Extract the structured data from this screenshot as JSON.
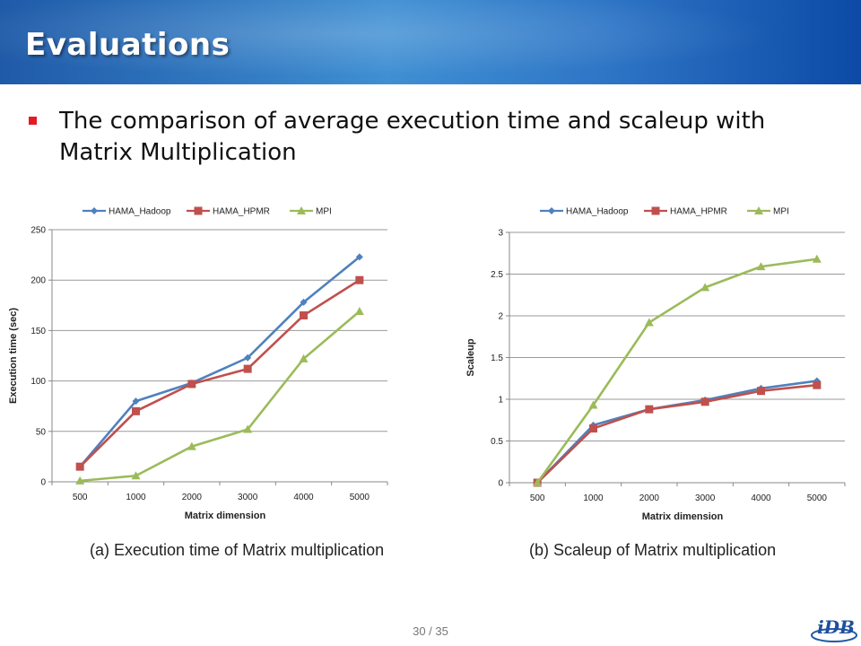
{
  "header": {
    "title": "Evaluations"
  },
  "bullet": {
    "text": "The comparison of average execution time and scaleup with Matrix Multiplication"
  },
  "colors": {
    "header_start": "#1f5aa8",
    "header_end": "#0c4aa6",
    "bullet": "#e31b23",
    "hama_hadoop": "#4f81bd",
    "hama_hpmr": "#c0504d",
    "mpi": "#9bbb59"
  },
  "chart_data": [
    {
      "type": "line",
      "title": "",
      "xlabel": "Matrix dimension",
      "ylabel": "Execution time (sec)",
      "categories": [
        "500",
        "1000",
        "2000",
        "3000",
        "4000",
        "5000"
      ],
      "ylim": [
        0,
        250
      ],
      "yticks": [
        "0",
        "50",
        "100",
        "150",
        "200",
        "250"
      ],
      "grid": true,
      "legend": "top",
      "series": [
        {
          "name": "HAMA_Hadoop",
          "color": "#4f81bd",
          "marker": "diamond",
          "values": [
            15,
            80,
            98,
            123,
            178,
            223
          ]
        },
        {
          "name": "HAMA_HPMR",
          "color": "#c0504d",
          "marker": "square",
          "values": [
            15,
            70,
            97,
            112,
            165,
            200
          ]
        },
        {
          "name": "MPI",
          "color": "#9bbb59",
          "marker": "triangle",
          "values": [
            1,
            6,
            35,
            52,
            122,
            169
          ]
        }
      ]
    },
    {
      "type": "line",
      "title": "",
      "xlabel": "Matrix dimension",
      "ylabel": "Scaleup",
      "categories": [
        "500",
        "1000",
        "2000",
        "3000",
        "4000",
        "5000"
      ],
      "ylim": [
        0,
        3
      ],
      "yticks": [
        "0",
        "0.5",
        "1",
        "1.5",
        "2",
        "2.5",
        "3"
      ],
      "grid": true,
      "legend": "top",
      "series": [
        {
          "name": "HAMA_Hadoop",
          "color": "#4f81bd",
          "marker": "diamond",
          "values": [
            0,
            0.69,
            0.88,
            0.99,
            1.13,
            1.22
          ]
        },
        {
          "name": "HAMA_HPMR",
          "color": "#c0504d",
          "marker": "square",
          "values": [
            0,
            0.65,
            0.88,
            0.97,
            1.1,
            1.17
          ]
        },
        {
          "name": "MPI",
          "color": "#9bbb59",
          "marker": "triangle",
          "values": [
            0,
            0.93,
            1.92,
            2.34,
            2.59,
            2.68
          ]
        }
      ]
    }
  ],
  "captions": {
    "a": "(a) Execution time of Matrix multiplication",
    "b": "(b) Scaleup of Matrix multiplication"
  },
  "footer": {
    "page": "30 / 35"
  },
  "logo": {
    "text": "iDB"
  }
}
